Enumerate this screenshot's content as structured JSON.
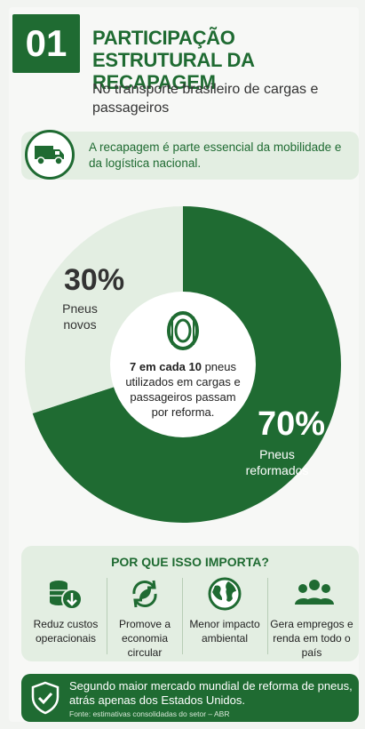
{
  "header": {
    "number": "01",
    "title": "PARTICIPAÇÃO ESTRUTURAL DA RECAPAGEM",
    "subtitle": "No transporte brasileiro de cargas e passageiros"
  },
  "banner": {
    "icon": "truck-icon",
    "text": "A recapagem é parte essencial da mobilidade e da logística nacional."
  },
  "chart_data": {
    "type": "pie",
    "slices": [
      {
        "name": "Pneus reformados",
        "value": 70,
        "value_label": "70%",
        "label": "Pneus reformados",
        "color": "#1f6b32"
      },
      {
        "name": "Pneus novos",
        "value": 30,
        "value_label": "30%",
        "label": "Pneus novos",
        "color": "#e3eee2"
      }
    ],
    "center_icon": "tire-icon",
    "center_text_bold": "7 em cada 10",
    "center_text": "pneus utilizados em cargas e passageiros passam por reforma."
  },
  "why": {
    "title": "POR QUE ISSO IMPORTA?",
    "items": [
      {
        "icon": "coins-down-icon",
        "label": "Reduz custos operacionais"
      },
      {
        "icon": "recycle-leaf-icon",
        "label": "Promove a economia circular"
      },
      {
        "icon": "globe-icon",
        "label": "Menor impacto ambiental"
      },
      {
        "icon": "people-icon",
        "label": "Gera empregos e renda em todo o país"
      }
    ]
  },
  "footer": {
    "icon": "shield-check-icon",
    "text": "Segundo maior mercado mundial de reforma de pneus, atrás apenas dos Estados Unidos.",
    "source": "Fonte: estimativas consolidadas do setor – ABR"
  },
  "colors": {
    "primary": "#1f6b32",
    "light": "#e3eee2"
  }
}
